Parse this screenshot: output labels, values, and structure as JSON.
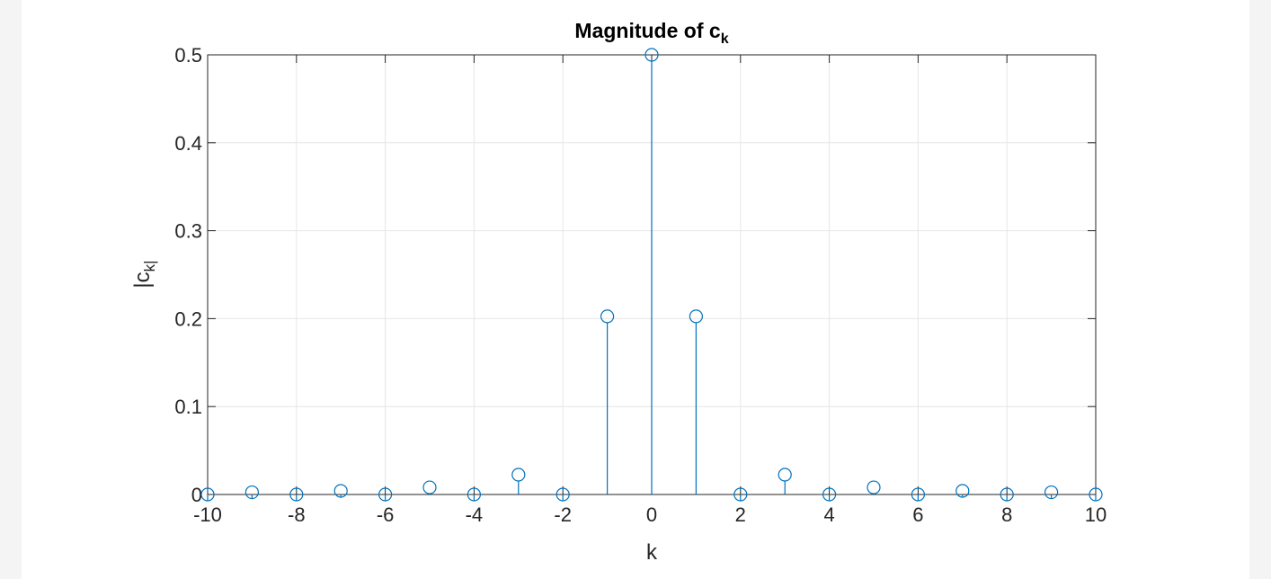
{
  "chart_data": {
    "type": "stem",
    "title_main": "Magnitude  of  c",
    "title_sub": "k",
    "xlabel": "k",
    "ylabel_main": "|c",
    "ylabel_sub": "k|",
    "xlim": [
      -10,
      10
    ],
    "ylim": [
      0,
      0.5
    ],
    "xticks": [
      -10,
      -8,
      -6,
      -4,
      -2,
      0,
      2,
      4,
      6,
      8,
      10
    ],
    "xtick_labels": [
      "-10",
      "-8",
      "-6",
      "-4",
      "-2",
      "0",
      "2",
      "4",
      "6",
      "8",
      "10"
    ],
    "yticks": [
      0,
      0.1,
      0.2,
      0.3,
      0.4,
      0.5
    ],
    "ytick_labels": [
      "0",
      "0.1",
      "0.2",
      "0.3",
      "0.4",
      "0.5"
    ],
    "grid": true,
    "series": [
      {
        "x": [
          -10,
          -9,
          -8,
          -7,
          -6,
          -5,
          -4,
          -3,
          -2,
          -1,
          0,
          1,
          2,
          3,
          4,
          5,
          6,
          7,
          8,
          9,
          10
        ],
        "values": [
          0,
          0.0025,
          0,
          0.0041,
          0,
          0.0081,
          0,
          0.0225,
          0,
          0.2026,
          0.5,
          0.2026,
          0,
          0.0225,
          0,
          0.0081,
          0,
          0.0041,
          0,
          0.0025,
          0
        ]
      }
    ],
    "colors": {
      "stem": "#0072BD",
      "grid": "#e6e6e6",
      "axes": "#262626",
      "text": "#262626"
    }
  }
}
